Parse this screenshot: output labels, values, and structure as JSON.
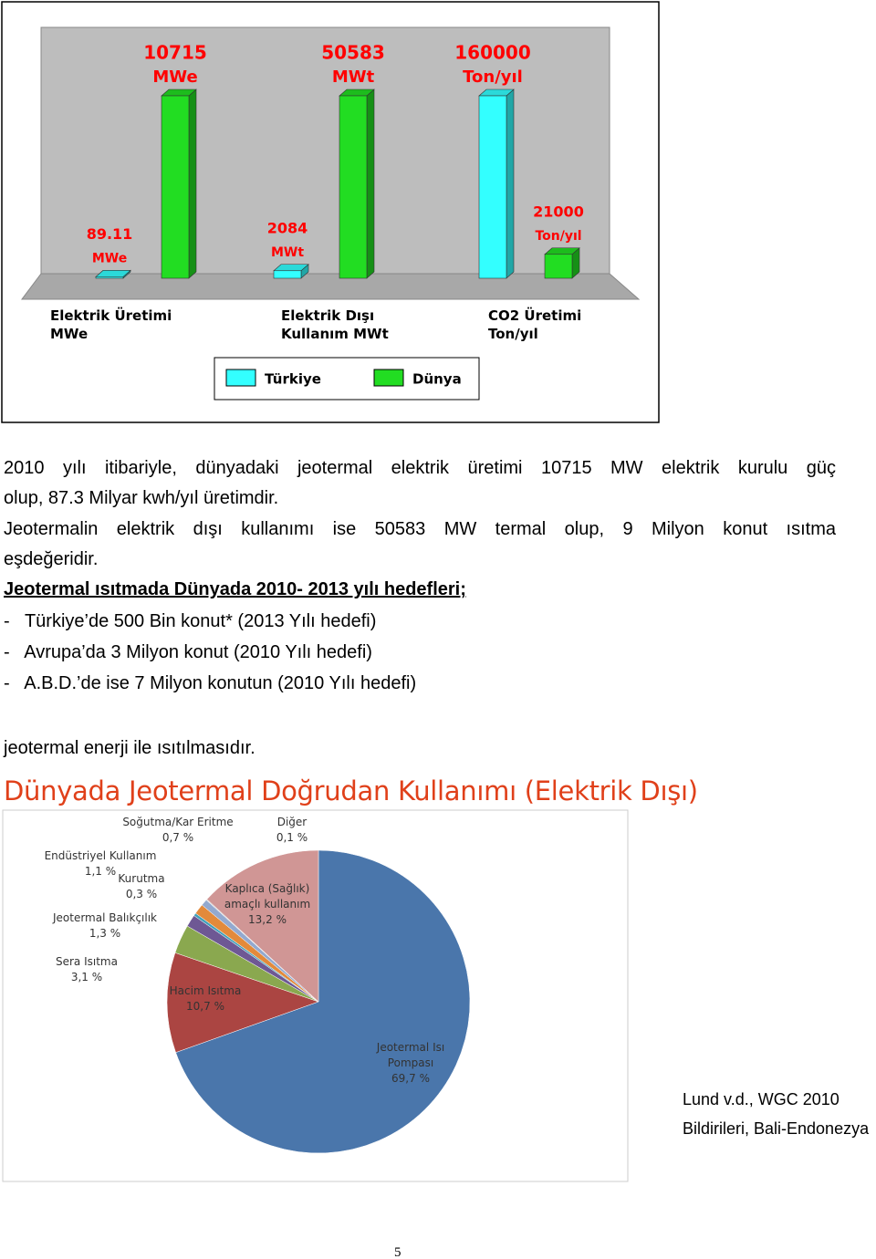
{
  "chart_data": [
    {
      "type": "bar",
      "categories": [
        "Elektrik Üretimi MWe",
        "Elektrik Dışı Kullanım MWt",
        "CO2 Üretimi Ton/yıl"
      ],
      "series": [
        {
          "name": "Türkiye",
          "color": "#33ffff",
          "values": [
            89.11,
            2084,
            160000
          ]
        },
        {
          "name": "Dünya",
          "color": "#22dd22",
          "values": [
            10715,
            50583,
            21000
          ]
        }
      ],
      "value_units": [
        "MWe",
        "MWt",
        "Ton/yıl"
      ],
      "label_color": "#ff0000"
    },
    {
      "type": "pie",
      "title": "Dünyada Jeotermal Doğrudan Kullanımı (Elektrik Dışı)",
      "categories": [
        "Jeotermal Isı Pompası",
        "Hacim Isıtma",
        "Sera Isıtma",
        "Jeotermal Balıkçılık",
        "Kurutma",
        "Endüstriyel Kullanım",
        "Soğutma/Kar Eritme",
        "Diğer",
        "Kaplıca (Sağlık) amaçlı kullanım"
      ],
      "values": [
        69.7,
        10.7,
        3.1,
        1.3,
        0.3,
        1.1,
        0.7,
        0.1,
        13.2
      ],
      "value_labels": [
        "69,7 %",
        "10,7 %",
        "3,1 %",
        "1,3 %",
        "0,3 %",
        "1,1 %",
        "0,7 %",
        "0,1 %",
        "13,2 %"
      ],
      "colors": [
        "#4a76ab",
        "#ab4542",
        "#8aa84f",
        "#6e5894",
        "#41a0ba",
        "#e38a3b",
        "#93a9cf",
        "#d0d0d0",
        "#d09695"
      ]
    }
  ],
  "document": {
    "lines": [
      "2010 yılı itibariyle, dünyadaki jeotermal elektrik üretimi 10715 MW elektrik kurulu güç",
      "olup, 87.3 Milyar kwh/yıl üretimdir.",
      "Jeotermalin elektrik dışı kullanımı ise 50583 MW termal olup, 9 Milyon konut ısıtma",
      "eşdeğeridir."
    ],
    "heading": "Jeotermal ısıtmada Dünyada 2010- 2013 yılı hedefleri;",
    "list": [
      "-   Türkiye’de 500 Bin konut* (2013 Yılı hedefi)",
      "-   Avrupa’da 3 Milyon konut (2010 Yılı hedefi)",
      "-   A.B.D.’de ise 7 Milyon konutun (2010 Yılı hedefi)"
    ],
    "closing": "jeotermal enerji ile ısıtılmasıdır.",
    "source": [
      "Lund v.d., WGC 2010",
      "Bildirileri, Bali-Endonezya"
    ],
    "page_number": "5"
  }
}
